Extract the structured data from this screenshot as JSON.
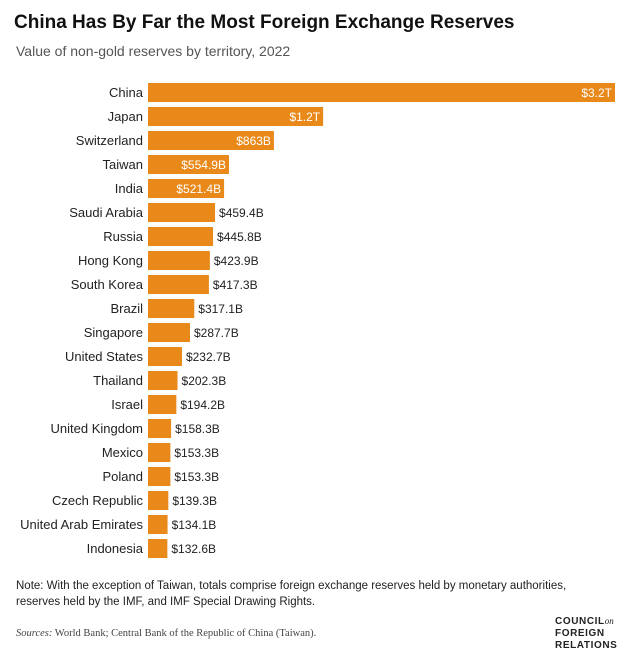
{
  "header": {
    "title": "China Has By Far the Most Foreign Exchange Reserves",
    "subtitle": "Value of non-gold reserves by territory, 2022"
  },
  "chart_data": {
    "type": "bar",
    "orientation": "horizontal",
    "title": "China Has By Far the Most Foreign Exchange Reserves",
    "subtitle": "Value of non-gold reserves by territory, 2022",
    "units": "billions USD",
    "categories": [
      "China",
      "Japan",
      "Switzerland",
      "Taiwan",
      "India",
      "Saudi Arabia",
      "Russia",
      "Hong Kong",
      "South Korea",
      "Brazil",
      "Singapore",
      "United States",
      "Thailand",
      "Israel",
      "United Kingdom",
      "Mexico",
      "Poland",
      "Czech Republic",
      "United Arab Emirates",
      "Indonesia"
    ],
    "values": [
      3200,
      1200,
      863,
      554.9,
      521.4,
      459.4,
      445.8,
      423.9,
      417.3,
      317.1,
      287.7,
      232.7,
      202.3,
      194.2,
      158.3,
      153.3,
      153.3,
      139.3,
      134.1,
      132.6
    ],
    "labels": [
      "$3.2T",
      "$1.2T",
      "$863B",
      "$554.9B",
      "$521.4B",
      "$459.4B",
      "$445.8B",
      "$423.9B",
      "$417.3B",
      "$317.1B",
      "$287.7B",
      "$232.7B",
      "$202.3B",
      "$194.2B",
      "$158.3B",
      "$153.3B",
      "$153.3B",
      "$139.3B",
      "$134.1B",
      "$132.6B"
    ],
    "xlim": [
      0,
      3200
    ],
    "bar_color": "#E8891A",
    "grid": false,
    "legend": "none"
  },
  "footer": {
    "note": "Note: With the exception of Taiwan, totals comprise foreign exchange reserves held by monetary authorities, reserves held by the IMF, and IMF Special Drawing Rights.",
    "sources_lead": "Sources:",
    "sources_text": " World Bank; Central Bank of the Republic of China (Taiwan).",
    "logo": {
      "line1": "COUNCIL",
      "on": "on",
      "line2": "FOREIGN",
      "line3": "RELATIONS"
    }
  }
}
